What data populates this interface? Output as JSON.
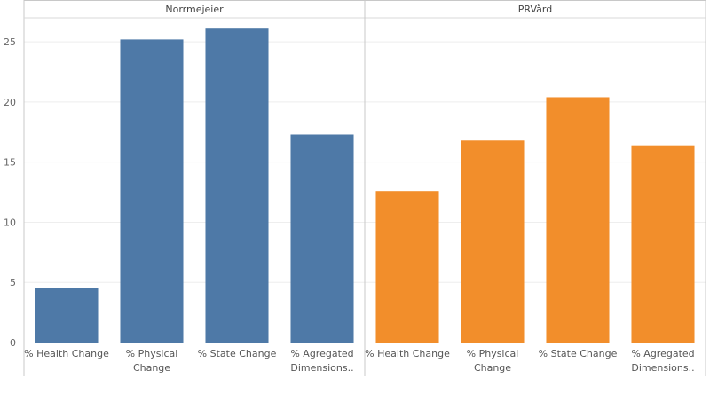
{
  "chart_data": {
    "type": "bar",
    "ylim": [
      0,
      27
    ],
    "yticks": [
      0,
      5,
      10,
      15,
      20,
      25
    ],
    "grid": true,
    "categories": [
      "% Health Change",
      "% Physical Change",
      "% State Change",
      "% Agregated Dimensions.."
    ],
    "category_label_lines": [
      [
        "% Health Change"
      ],
      [
        "% Physical",
        "Change"
      ],
      [
        "% State Change"
      ],
      [
        "% Agregated",
        "Dimensions.."
      ]
    ],
    "panels": [
      {
        "name": "Norrmejeier",
        "color": "#4e79a7",
        "values": [
          4.5,
          25.2,
          26.1,
          17.3
        ]
      },
      {
        "name": "PRVård",
        "color": "#f28e2b",
        "values": [
          12.6,
          16.8,
          20.4,
          16.4
        ]
      }
    ]
  }
}
